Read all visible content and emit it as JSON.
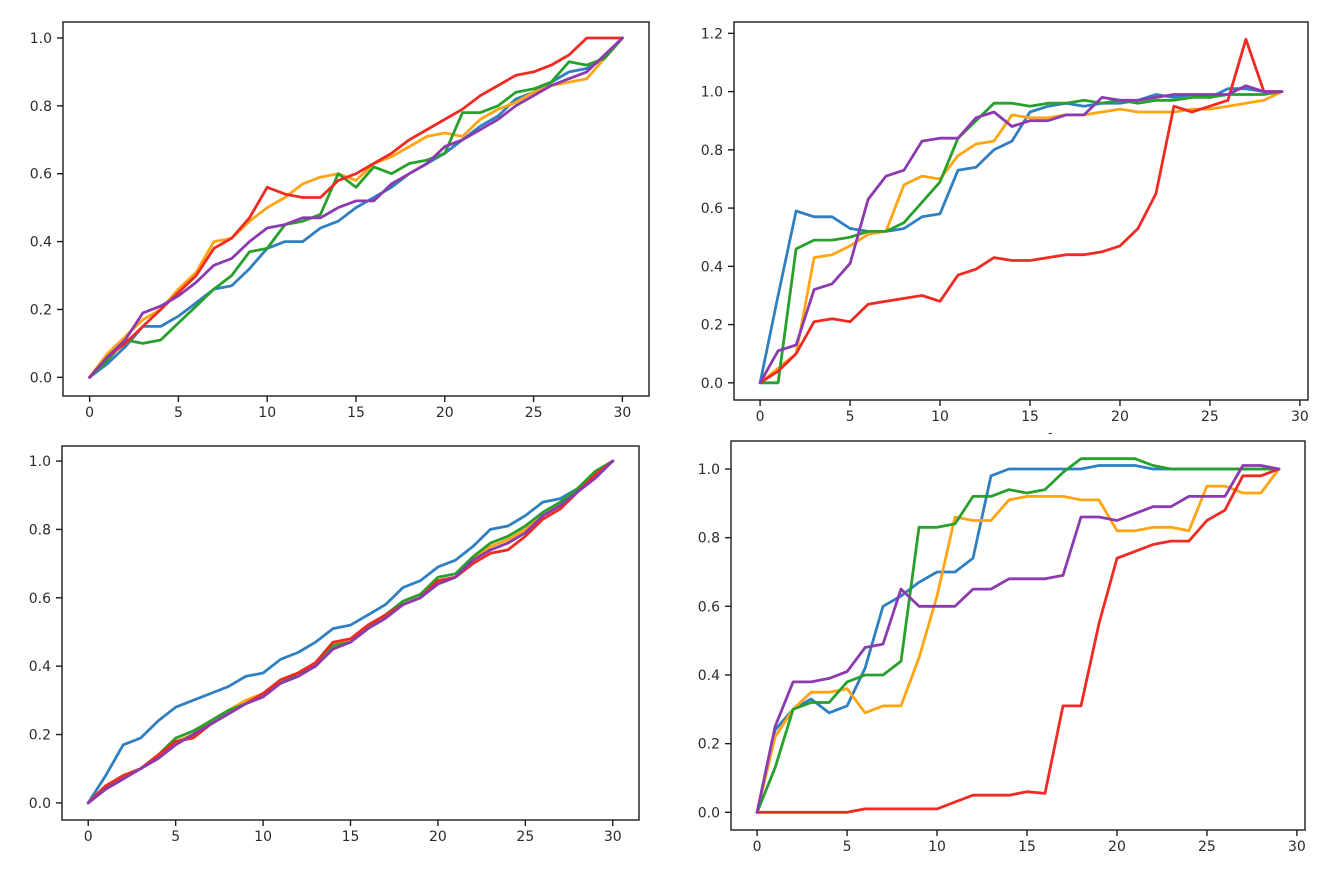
{
  "page": {
    "background": "#ffffff",
    "stray_mark": "-"
  },
  "chart_data": [
    {
      "id": "top-left",
      "type": "line",
      "title": "",
      "xlabel": "",
      "ylabel": "",
      "grid": false,
      "legend": null,
      "x": [
        0,
        1,
        2,
        3,
        4,
        5,
        6,
        7,
        8,
        9,
        10,
        11,
        12,
        13,
        14,
        15,
        16,
        17,
        18,
        19,
        20,
        21,
        22,
        23,
        24,
        25,
        26,
        27,
        28,
        29,
        30
      ],
      "xlim": [
        -1.5,
        31.5
      ],
      "ylim": [
        -0.055,
        1.047
      ],
      "xticks": [
        0,
        5,
        10,
        15,
        20,
        25,
        30
      ],
      "xtick_labels": [
        "0",
        "5",
        "10",
        "15",
        "20",
        "25",
        "30"
      ],
      "yticks": [
        0.0,
        0.2,
        0.4,
        0.6,
        0.8,
        1.0
      ],
      "ytick_labels": [
        "0.0",
        "0.2",
        "0.4",
        "0.6",
        "0.8",
        "1.0"
      ],
      "series": [
        {
          "name": "blue",
          "color": "#2f7fc1",
          "values": [
            0.0,
            0.04,
            0.09,
            0.15,
            0.15,
            0.18,
            0.22,
            0.26,
            0.27,
            0.32,
            0.38,
            0.4,
            0.4,
            0.44,
            0.46,
            0.5,
            0.53,
            0.56,
            0.6,
            0.63,
            0.66,
            0.7,
            0.74,
            0.77,
            0.82,
            0.84,
            0.87,
            0.9,
            0.91,
            0.94,
            1.0
          ]
        },
        {
          "name": "orange",
          "color": "#ffa512",
          "values": [
            0.0,
            0.07,
            0.12,
            0.17,
            0.2,
            0.26,
            0.31,
            0.4,
            0.41,
            0.46,
            0.5,
            0.53,
            0.57,
            0.59,
            0.6,
            0.58,
            0.63,
            0.65,
            0.68,
            0.71,
            0.72,
            0.71,
            0.76,
            0.79,
            0.81,
            0.84,
            0.86,
            0.87,
            0.88,
            0.94,
            1.0
          ]
        },
        {
          "name": "green",
          "color": "#28a02c",
          "values": [
            0.0,
            0.05,
            0.11,
            0.1,
            0.11,
            0.16,
            0.21,
            0.26,
            0.3,
            0.37,
            0.38,
            0.45,
            0.46,
            0.48,
            0.6,
            0.56,
            0.62,
            0.6,
            0.63,
            0.64,
            0.66,
            0.78,
            0.78,
            0.8,
            0.84,
            0.85,
            0.87,
            0.93,
            0.92,
            0.94,
            1.0
          ]
        },
        {
          "name": "red",
          "color": "#f02b23",
          "values": [
            0.0,
            0.06,
            0.1,
            0.15,
            0.2,
            0.25,
            0.3,
            0.38,
            0.41,
            0.47,
            0.56,
            0.54,
            0.53,
            0.53,
            0.58,
            0.6,
            0.63,
            0.66,
            0.7,
            0.73,
            0.76,
            0.79,
            0.83,
            0.86,
            0.89,
            0.9,
            0.92,
            0.95,
            1.0,
            1.0,
            1.0
          ]
        },
        {
          "name": "purple",
          "color": "#8b3ab0",
          "values": [
            0.0,
            0.06,
            0.11,
            0.19,
            0.21,
            0.24,
            0.28,
            0.33,
            0.35,
            0.4,
            0.44,
            0.45,
            0.47,
            0.47,
            0.5,
            0.52,
            0.52,
            0.57,
            0.6,
            0.63,
            0.68,
            0.7,
            0.73,
            0.76,
            0.8,
            0.83,
            0.86,
            0.88,
            0.9,
            0.95,
            1.0
          ]
        }
      ]
    },
    {
      "id": "top-right",
      "type": "line",
      "title": "",
      "xlabel": "",
      "ylabel": "",
      "grid": false,
      "legend": null,
      "x": [
        0,
        1,
        2,
        3,
        4,
        5,
        6,
        7,
        8,
        9,
        10,
        11,
        12,
        13,
        14,
        15,
        16,
        17,
        18,
        19,
        20,
        21,
        22,
        23,
        24,
        25,
        26,
        27,
        28,
        29
      ],
      "xlim": [
        -1.45,
        30.45
      ],
      "ylim": [
        -0.059,
        1.239
      ],
      "xticks": [
        0,
        5,
        10,
        15,
        20,
        25,
        30
      ],
      "xtick_labels": [
        "0",
        "5",
        "10",
        "15",
        "20",
        "25",
        "30"
      ],
      "yticks": [
        0.0,
        0.2,
        0.4,
        0.6,
        0.8,
        1.0,
        1.2
      ],
      "ytick_labels": [
        "0.0",
        "0.2",
        "0.4",
        "0.6",
        "0.8",
        "1.0",
        "1.2"
      ],
      "series": [
        {
          "name": "blue",
          "color": "#2f7fc1",
          "values": [
            0.0,
            0.3,
            0.59,
            0.57,
            0.57,
            0.53,
            0.52,
            0.52,
            0.53,
            0.57,
            0.58,
            0.73,
            0.74,
            0.8,
            0.83,
            0.93,
            0.95,
            0.96,
            0.95,
            0.96,
            0.96,
            0.97,
            0.99,
            0.98,
            0.99,
            0.98,
            1.01,
            1.01,
            1.0,
            1.0
          ]
        },
        {
          "name": "orange",
          "color": "#ffa512",
          "values": [
            0.0,
            0.05,
            0.1,
            0.43,
            0.44,
            0.47,
            0.51,
            0.52,
            0.68,
            0.71,
            0.7,
            0.78,
            0.82,
            0.83,
            0.92,
            0.91,
            0.91,
            0.92,
            0.92,
            0.93,
            0.94,
            0.93,
            0.93,
            0.93,
            0.94,
            0.94,
            0.95,
            0.96,
            0.97,
            1.0
          ]
        },
        {
          "name": "green",
          "color": "#28a02c",
          "values": [
            0.0,
            0.0,
            0.46,
            0.49,
            0.49,
            0.5,
            0.52,
            0.52,
            0.55,
            0.62,
            0.69,
            0.84,
            0.9,
            0.96,
            0.96,
            0.95,
            0.96,
            0.96,
            0.97,
            0.96,
            0.97,
            0.96,
            0.97,
            0.97,
            0.98,
            0.98,
            0.99,
            0.99,
            0.99,
            1.0
          ]
        },
        {
          "name": "red",
          "color": "#f02b23",
          "values": [
            0.0,
            0.04,
            0.1,
            0.21,
            0.22,
            0.21,
            0.27,
            0.28,
            0.29,
            0.3,
            0.28,
            0.37,
            0.39,
            0.43,
            0.42,
            0.42,
            0.43,
            0.44,
            0.44,
            0.45,
            0.47,
            0.53,
            0.65,
            0.95,
            0.93,
            0.95,
            0.97,
            1.18,
            1.0,
            1.0
          ]
        },
        {
          "name": "purple",
          "color": "#8b3ab0",
          "values": [
            0.0,
            0.11,
            0.13,
            0.32,
            0.34,
            0.41,
            0.63,
            0.71,
            0.73,
            0.83,
            0.84,
            0.84,
            0.91,
            0.93,
            0.88,
            0.9,
            0.9,
            0.92,
            0.92,
            0.98,
            0.97,
            0.97,
            0.98,
            0.99,
            0.99,
            0.99,
            0.99,
            1.02,
            1.0,
            1.0
          ]
        }
      ]
    },
    {
      "id": "bottom-left",
      "type": "line",
      "title": "",
      "xlabel": "",
      "ylabel": "",
      "grid": false,
      "legend": null,
      "x": [
        0,
        1,
        2,
        3,
        4,
        5,
        6,
        7,
        8,
        9,
        10,
        11,
        12,
        13,
        14,
        15,
        16,
        17,
        18,
        19,
        20,
        21,
        22,
        23,
        24,
        25,
        26,
        27,
        28,
        29,
        30
      ],
      "xlim": [
        -1.5,
        31.5
      ],
      "ylim": [
        -0.05,
        1.044
      ],
      "xticks": [
        0,
        5,
        10,
        15,
        20,
        25,
        30
      ],
      "xtick_labels": [
        "0",
        "5",
        "10",
        "15",
        "20",
        "25",
        "30"
      ],
      "yticks": [
        0.0,
        0.2,
        0.4,
        0.6,
        0.8,
        1.0
      ],
      "ytick_labels": [
        "0.0",
        "0.2",
        "0.4",
        "0.6",
        "0.8",
        "1.0"
      ],
      "series": [
        {
          "name": "blue",
          "color": "#2f7fc1",
          "values": [
            0.0,
            0.08,
            0.17,
            0.19,
            0.24,
            0.28,
            0.3,
            0.32,
            0.34,
            0.37,
            0.38,
            0.42,
            0.44,
            0.47,
            0.51,
            0.52,
            0.55,
            0.58,
            0.63,
            0.65,
            0.69,
            0.71,
            0.75,
            0.8,
            0.81,
            0.84,
            0.88,
            0.89,
            0.92,
            0.96,
            1.0
          ]
        },
        {
          "name": "orange",
          "color": "#ffa512",
          "values": [
            0.0,
            0.05,
            0.08,
            0.1,
            0.14,
            0.18,
            0.2,
            0.24,
            0.27,
            0.3,
            0.32,
            0.36,
            0.38,
            0.41,
            0.46,
            0.48,
            0.52,
            0.55,
            0.59,
            0.61,
            0.65,
            0.66,
            0.71,
            0.75,
            0.77,
            0.8,
            0.84,
            0.87,
            0.91,
            0.96,
            1.0
          ]
        },
        {
          "name": "green",
          "color": "#28a02c",
          "values": [
            0.0,
            0.04,
            0.08,
            0.1,
            0.14,
            0.19,
            0.21,
            0.24,
            0.27,
            0.29,
            0.32,
            0.35,
            0.38,
            0.4,
            0.46,
            0.47,
            0.51,
            0.55,
            0.59,
            0.61,
            0.66,
            0.67,
            0.72,
            0.76,
            0.78,
            0.81,
            0.85,
            0.88,
            0.92,
            0.97,
            1.0
          ]
        },
        {
          "name": "red",
          "color": "#f02b23",
          "values": [
            0.0,
            0.05,
            0.08,
            0.1,
            0.14,
            0.18,
            0.19,
            0.23,
            0.26,
            0.29,
            0.32,
            0.36,
            0.38,
            0.41,
            0.47,
            0.48,
            0.52,
            0.55,
            0.58,
            0.6,
            0.65,
            0.66,
            0.7,
            0.73,
            0.74,
            0.78,
            0.83,
            0.86,
            0.91,
            0.96,
            1.0
          ]
        },
        {
          "name": "purple",
          "color": "#8b3ab0",
          "values": [
            0.0,
            0.04,
            0.07,
            0.1,
            0.13,
            0.17,
            0.2,
            0.23,
            0.26,
            0.29,
            0.31,
            0.35,
            0.37,
            0.4,
            0.45,
            0.47,
            0.51,
            0.54,
            0.58,
            0.6,
            0.64,
            0.66,
            0.71,
            0.74,
            0.76,
            0.79,
            0.84,
            0.87,
            0.91,
            0.95,
            1.0
          ]
        }
      ]
    },
    {
      "id": "bottom-right",
      "type": "line",
      "title": "",
      "xlabel": "",
      "ylabel": "",
      "grid": false,
      "legend": null,
      "x": [
        0,
        1,
        2,
        3,
        4,
        5,
        6,
        7,
        8,
        9,
        10,
        11,
        12,
        13,
        14,
        15,
        16,
        17,
        18,
        19,
        20,
        21,
        22,
        23,
        24,
        25,
        26,
        27,
        28,
        29
      ],
      "xlim": [
        -1.45,
        30.45
      ],
      "ylim": [
        -0.0515,
        1.0815
      ],
      "xticks": [
        0,
        5,
        10,
        15,
        20,
        25,
        30
      ],
      "xtick_labels": [
        "0",
        "5",
        "10",
        "15",
        "20",
        "25",
        "30"
      ],
      "yticks": [
        0.0,
        0.2,
        0.4,
        0.6,
        0.8,
        1.0
      ],
      "ytick_labels": [
        "0.0",
        "0.2",
        "0.4",
        "0.6",
        "0.8",
        "1.0"
      ],
      "series": [
        {
          "name": "blue",
          "color": "#2f7fc1",
          "values": [
            0.0,
            0.24,
            0.3,
            0.33,
            0.29,
            0.31,
            0.42,
            0.6,
            0.63,
            0.67,
            0.7,
            0.7,
            0.74,
            0.98,
            1.0,
            1.0,
            1.0,
            1.0,
            1.0,
            1.01,
            1.01,
            1.01,
            1.0,
            1.0,
            1.0,
            1.0,
            1.0,
            1.0,
            1.0,
            1.0
          ]
        },
        {
          "name": "orange",
          "color": "#ffa512",
          "values": [
            0.0,
            0.22,
            0.3,
            0.35,
            0.35,
            0.36,
            0.29,
            0.31,
            0.31,
            0.45,
            0.63,
            0.86,
            0.85,
            0.85,
            0.91,
            0.92,
            0.92,
            0.92,
            0.91,
            0.91,
            0.82,
            0.82,
            0.83,
            0.83,
            0.82,
            0.95,
            0.95,
            0.93,
            0.93,
            1.0
          ]
        },
        {
          "name": "green",
          "color": "#28a02c",
          "values": [
            0.0,
            0.13,
            0.3,
            0.32,
            0.32,
            0.38,
            0.4,
            0.4,
            0.44,
            0.83,
            0.83,
            0.84,
            0.92,
            0.92,
            0.94,
            0.93,
            0.94,
            0.99,
            1.03,
            1.03,
            1.03,
            1.03,
            1.01,
            1.0,
            1.0,
            1.0,
            1.0,
            1.0,
            1.0,
            1.0
          ]
        },
        {
          "name": "red",
          "color": "#f02b23",
          "values": [
            0.0,
            0.0,
            0.0,
            0.0,
            0.0,
            0.0,
            0.01,
            0.01,
            0.01,
            0.01,
            0.01,
            0.03,
            0.05,
            0.05,
            0.05,
            0.06,
            0.055,
            0.31,
            0.31,
            0.55,
            0.74,
            0.76,
            0.78,
            0.79,
            0.79,
            0.85,
            0.88,
            0.98,
            0.98,
            1.0
          ]
        },
        {
          "name": "purple",
          "color": "#8b3ab0",
          "values": [
            0.0,
            0.25,
            0.38,
            0.38,
            0.39,
            0.41,
            0.48,
            0.49,
            0.65,
            0.6,
            0.6,
            0.6,
            0.65,
            0.65,
            0.68,
            0.68,
            0.68,
            0.69,
            0.86,
            0.86,
            0.85,
            0.87,
            0.89,
            0.89,
            0.92,
            0.92,
            0.92,
            1.01,
            1.01,
            1.0
          ]
        }
      ]
    }
  ]
}
